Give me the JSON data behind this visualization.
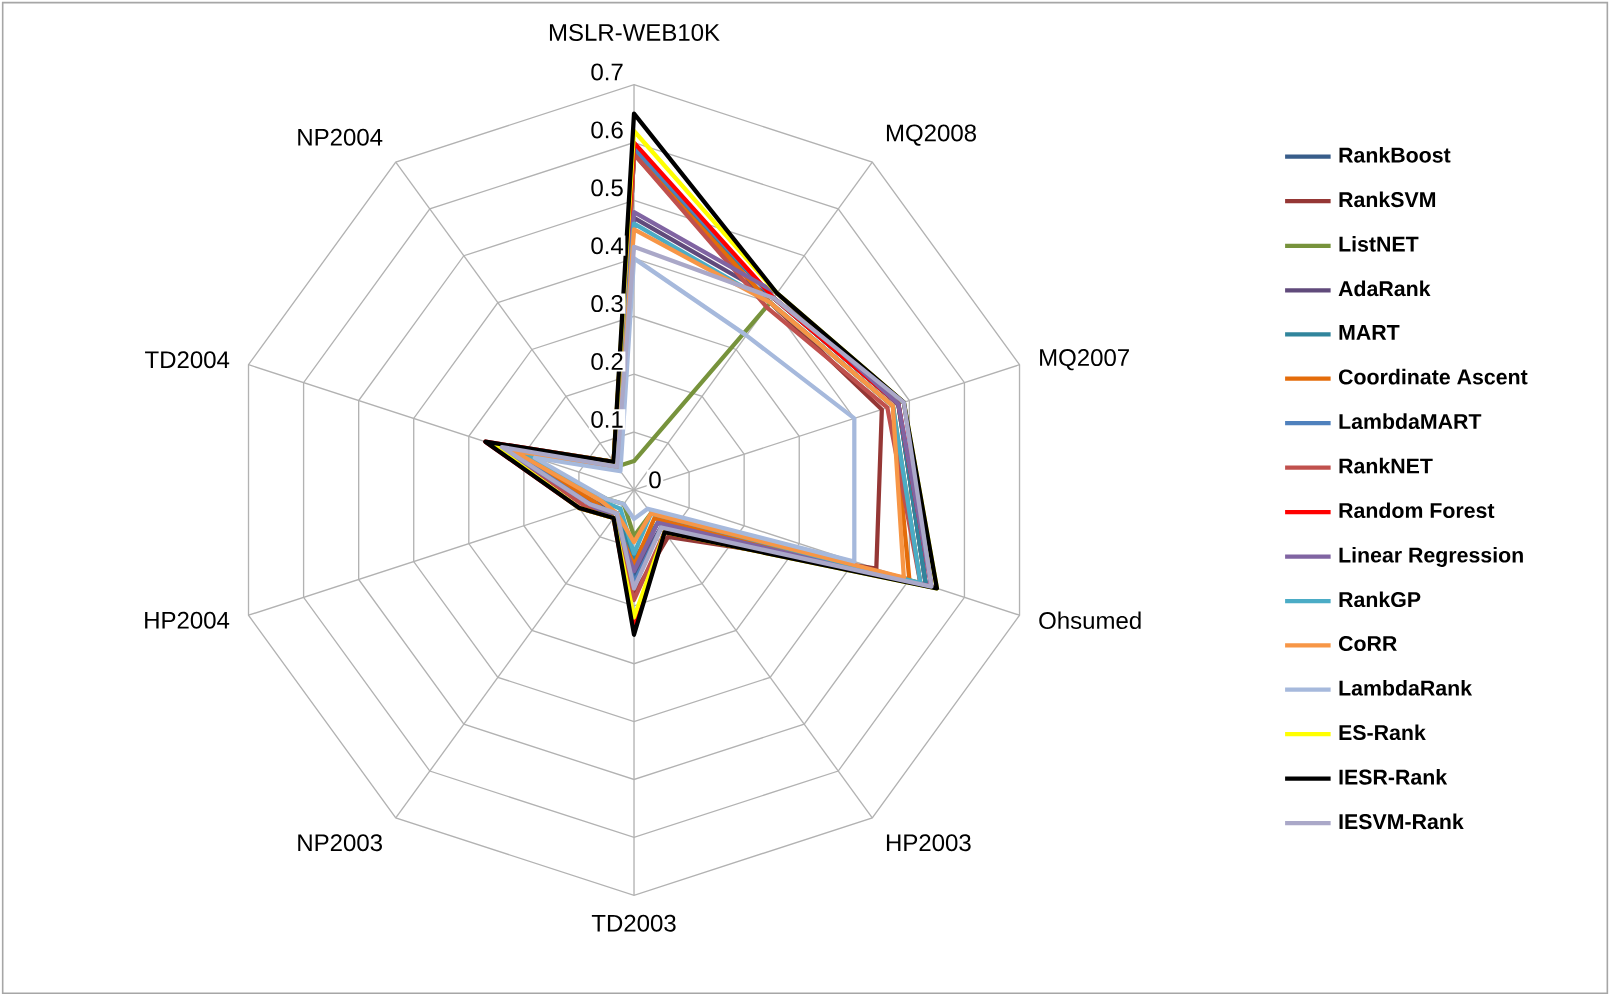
{
  "chart_data": {
    "type": "radar",
    "categories": [
      "MSLR-WEB10K",
      "MQ2008",
      "MQ2007",
      "Ohsumed",
      "HP2003",
      "TD2003",
      "NP2003",
      "HP2004",
      "TD2004",
      "NP2004"
    ],
    "ylim": [
      0,
      0.7
    ],
    "yticks": [
      0,
      0.1,
      0.2,
      0.3,
      0.4,
      0.5,
      0.6,
      0.7
    ],
    "grid": true,
    "legend": "right",
    "series": [
      {
        "name": "RankBoost",
        "color": "#385d8a",
        "values": [
          0.58,
          0.41,
          0.48,
          0.53,
          0.08,
          0.15,
          0.05,
          0.07,
          0.22,
          0.05
        ]
      },
      {
        "name": "RankSVM",
        "color": "#953735",
        "values": [
          0.58,
          0.4,
          0.45,
          0.44,
          0.1,
          0.18,
          0.06,
          0.08,
          0.24,
          0.06
        ]
      },
      {
        "name": "ListNET",
        "color": "#77933c",
        "values": [
          0.05,
          0.4,
          0.47,
          0.52,
          0.05,
          0.08,
          0.03,
          0.05,
          0.22,
          0.05
        ]
      },
      {
        "name": "AdaRank",
        "color": "#604a7b",
        "values": [
          0.47,
          0.41,
          0.48,
          0.53,
          0.08,
          0.14,
          0.06,
          0.07,
          0.24,
          0.06
        ]
      },
      {
        "name": "MART",
        "color": "#31859c",
        "values": [
          0.58,
          0.41,
          0.48,
          0.53,
          0.07,
          0.12,
          0.05,
          0.08,
          0.21,
          0.05
        ]
      },
      {
        "name": "Coordinate Ascent",
        "color": "#e46c0a",
        "values": [
          0.58,
          0.4,
          0.47,
          0.5,
          0.06,
          0.13,
          0.06,
          0.07,
          0.23,
          0.05
        ]
      },
      {
        "name": "LambdaMART",
        "color": "#4f81bd",
        "values": [
          0.59,
          0.41,
          0.49,
          0.54,
          0.08,
          0.16,
          0.05,
          0.08,
          0.23,
          0.06
        ]
      },
      {
        "name": "RankNET",
        "color": "#c0504d",
        "values": [
          0.58,
          0.39,
          0.46,
          0.52,
          0.09,
          0.19,
          0.06,
          0.09,
          0.24,
          0.05
        ]
      },
      {
        "name": "Random Forest",
        "color": "#ff0000",
        "values": [
          0.6,
          0.41,
          0.48,
          0.54,
          0.09,
          0.24,
          0.06,
          0.1,
          0.27,
          0.06
        ]
      },
      {
        "name": "Linear Regression",
        "color": "#8064a2",
        "values": [
          0.48,
          0.42,
          0.48,
          0.54,
          0.07,
          0.14,
          0.06,
          0.08,
          0.25,
          0.06
        ]
      },
      {
        "name": "RankGP",
        "color": "#4bacc6",
        "values": [
          0.46,
          0.4,
          0.47,
          0.52,
          0.05,
          0.11,
          0.04,
          0.06,
          0.2,
          0.05
        ]
      },
      {
        "name": "CoRR",
        "color": "#f79646",
        "values": [
          0.45,
          0.4,
          0.47,
          0.49,
          0.05,
          0.09,
          0.05,
          0.06,
          0.22,
          0.05
        ]
      },
      {
        "name": "LambdaRank",
        "color": "#a6b9dc",
        "values": [
          0.4,
          0.33,
          0.4,
          0.4,
          0.04,
          0.05,
          0.03,
          0.05,
          0.18,
          0.04
        ]
      },
      {
        "name": "ES-Rank",
        "color": "#ffff00",
        "values": [
          0.62,
          0.42,
          0.49,
          0.55,
          0.09,
          0.22,
          0.06,
          0.1,
          0.26,
          0.06
        ]
      },
      {
        "name": "IESR-Rank",
        "color": "#000000",
        "values": [
          0.65,
          0.42,
          0.49,
          0.55,
          0.09,
          0.25,
          0.06,
          0.1,
          0.27,
          0.06
        ]
      },
      {
        "name": "IESVM-Rank",
        "color": "#aaa8c8",
        "values": [
          0.42,
          0.41,
          0.49,
          0.54,
          0.08,
          0.17,
          0.05,
          0.08,
          0.24,
          0.05
        ]
      }
    ]
  }
}
